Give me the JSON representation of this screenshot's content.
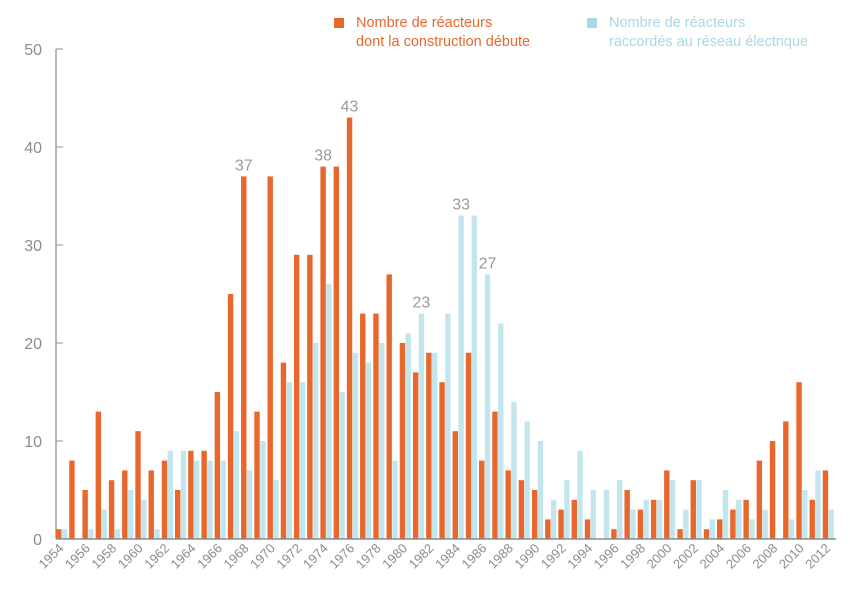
{
  "chart_data": {
    "type": "bar",
    "title": "",
    "xlabel": "",
    "ylabel": "",
    "ylim": [
      0,
      50
    ],
    "yticks": [
      0,
      10,
      20,
      30,
      40,
      50
    ],
    "xtick_labels": [
      "1954",
      "1956",
      "1958",
      "1960",
      "1962",
      "1964",
      "1966",
      "1968",
      "1970",
      "1972",
      "1974",
      "1976",
      "1978",
      "1980",
      "1982",
      "1984",
      "1986",
      "1988",
      "1990",
      "1992",
      "1994",
      "1996",
      "1998",
      "2000",
      "2002",
      "2004",
      "2006",
      "2008",
      "2010",
      "2012"
    ],
    "grid": false,
    "legend_position": "top-right",
    "categories": [
      1954,
      1955,
      1956,
      1957,
      1958,
      1959,
      1960,
      1961,
      1962,
      1963,
      1964,
      1965,
      1966,
      1967,
      1968,
      1969,
      1970,
      1971,
      1972,
      1973,
      1974,
      1975,
      1976,
      1977,
      1978,
      1979,
      1980,
      1981,
      1982,
      1983,
      1984,
      1985,
      1986,
      1987,
      1988,
      1989,
      1990,
      1991,
      1992,
      1993,
      1994,
      1995,
      1996,
      1997,
      1998,
      1999,
      2000,
      2001,
      2002,
      2003,
      2004,
      2005,
      2006,
      2007,
      2008,
      2009,
      2010,
      2011,
      2012
    ],
    "series": [
      {
        "name": "Nombre de réacteurs dont la construction débute",
        "legend_lines": [
          "Nombre de réacteurs",
          "dont la construction débute"
        ],
        "color": "#e8672d",
        "values": [
          1,
          8,
          5,
          13,
          6,
          7,
          11,
          7,
          8,
          5,
          9,
          9,
          15,
          25,
          37,
          13,
          37,
          18,
          29,
          29,
          38,
          38,
          43,
          23,
          23,
          27,
          20,
          17,
          19,
          16,
          11,
          19,
          8,
          13,
          7,
          6,
          5,
          2,
          3,
          4,
          2,
          0,
          1,
          5,
          3,
          4,
          7,
          1,
          6,
          1,
          2,
          3,
          4,
          8,
          10,
          12,
          16,
          4,
          7
        ]
      },
      {
        "name": "Nombre de réacteurs raccordés au réseau électrique",
        "legend_lines": [
          "Nombre de réacteurs",
          "raccordés au réseau électrique"
        ],
        "color": "#c3e6ee",
        "legend_color": "#a8d8e6",
        "values": [
          1,
          0,
          1,
          3,
          1,
          5,
          4,
          1,
          9,
          9,
          8,
          8,
          8,
          11,
          7,
          10,
          6,
          16,
          16,
          20,
          26,
          15,
          19,
          18,
          20,
          8,
          21,
          23,
          19,
          23,
          33,
          33,
          27,
          22,
          14,
          12,
          10,
          4,
          6,
          9,
          5,
          5,
          6,
          3,
          4,
          4,
          6,
          3,
          6,
          2,
          5,
          4,
          2,
          3,
          0,
          2,
          5,
          7,
          3
        ]
      }
    ],
    "annotations": [
      {
        "text": "37",
        "year": 1968,
        "series": 0,
        "value": 37
      },
      {
        "text": "38",
        "year": 1974,
        "series": 0,
        "value": 38
      },
      {
        "text": "43",
        "year": 1976,
        "series": 0,
        "value": 43
      },
      {
        "text": "23",
        "year": 1981,
        "series": 1,
        "value": 23
      },
      {
        "text": "33",
        "year": 1984,
        "series": 1,
        "value": 33
      },
      {
        "text": "27",
        "year": 1986,
        "series": 1,
        "value": 27
      }
    ],
    "colors": {
      "axis": "#8c8c8c",
      "tick_text": "#8c8c8c",
      "annotation_text": "#9a9a9a"
    }
  }
}
